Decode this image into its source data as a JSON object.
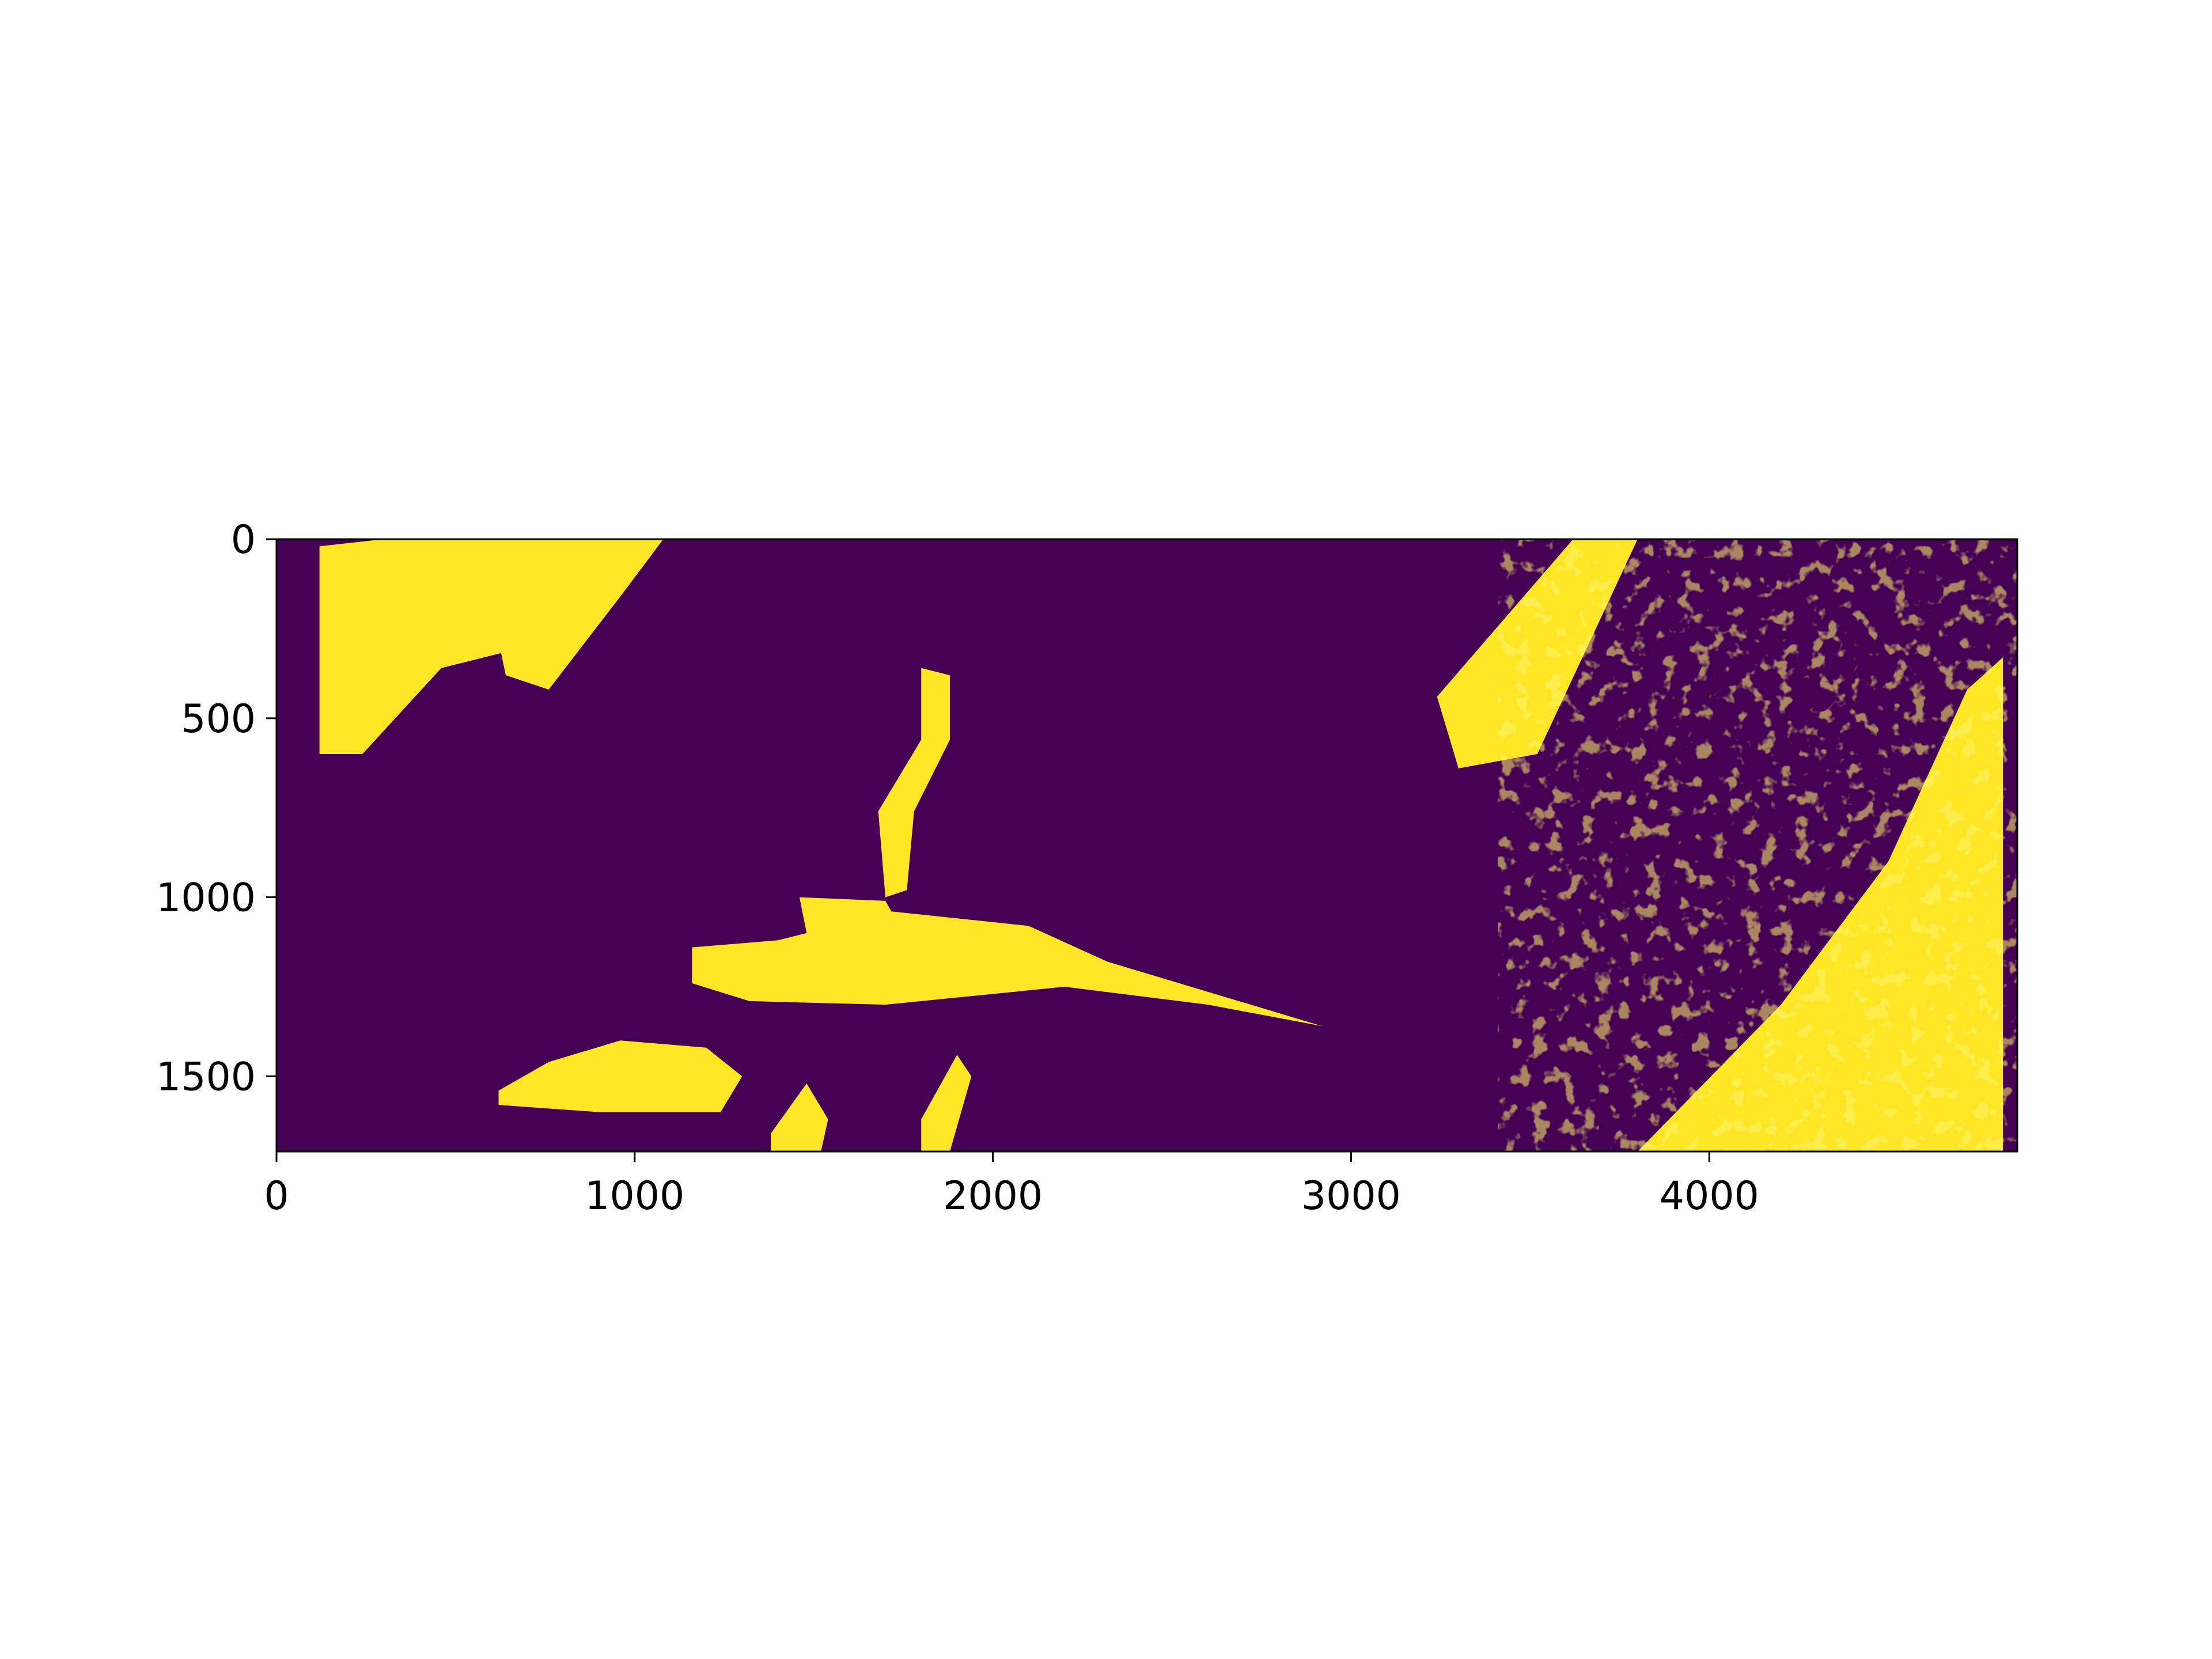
{
  "chart_data": {
    "type": "heatmap",
    "colormap": "viridis",
    "values_present": [
      0,
      1
    ],
    "colors": {
      "low": "#440154",
      "high": "#fde725",
      "frame": "#000000"
    },
    "x_axis": {
      "range": [
        0,
        4860
      ],
      "ticks": [
        0,
        1000,
        2000,
        3000,
        4000
      ],
      "tick_labels": [
        "0",
        "1000",
        "2000",
        "3000",
        "4000"
      ]
    },
    "y_axis": {
      "range": [
        0,
        1710
      ],
      "inverted": true,
      "ticks": [
        0,
        500,
        1000,
        1500
      ],
      "tick_labels": [
        "0",
        "500",
        "1000",
        "1500"
      ]
    },
    "regions_value_1": [
      {
        "name": "upper-left-bright-area",
        "points": [
          [
            120,
            20
          ],
          [
            300,
            0
          ],
          [
            560,
            0
          ],
          [
            700,
            300
          ],
          [
            460,
            360
          ],
          [
            240,
            600
          ],
          [
            120,
            600
          ]
        ]
      },
      {
        "name": "upper-left-fragments",
        "points": [
          [
            560,
            0
          ],
          [
            1080,
            0
          ],
          [
            960,
            160
          ],
          [
            760,
            420
          ],
          [
            640,
            380
          ]
        ]
      },
      {
        "name": "central-river-channel",
        "points": [
          [
            1800,
            360
          ],
          [
            1880,
            380
          ],
          [
            1880,
            560
          ],
          [
            1780,
            760
          ],
          [
            1760,
            980
          ],
          [
            1700,
            1000
          ],
          [
            1680,
            760
          ],
          [
            1800,
            560
          ]
        ]
      },
      {
        "name": "central-large-water-body",
        "points": [
          [
            1160,
            1140
          ],
          [
            1400,
            1120
          ],
          [
            1720,
            1040
          ],
          [
            2100,
            1080
          ],
          [
            2320,
            1180
          ],
          [
            2920,
            1360
          ],
          [
            2600,
            1300
          ],
          [
            2200,
            1250
          ],
          [
            1700,
            1300
          ],
          [
            1320,
            1290
          ],
          [
            1160,
            1240
          ]
        ]
      },
      {
        "name": "left-channel-arm",
        "points": [
          [
            1460,
            1000
          ],
          [
            1700,
            1010
          ],
          [
            1740,
            1080
          ],
          [
            1480,
            1100
          ]
        ]
      },
      {
        "name": "lower-left-water-body",
        "points": [
          [
            620,
            1540
          ],
          [
            760,
            1460
          ],
          [
            960,
            1400
          ],
          [
            1200,
            1420
          ],
          [
            1300,
            1500
          ],
          [
            1240,
            1600
          ],
          [
            900,
            1600
          ],
          [
            620,
            1580
          ]
        ]
      },
      {
        "name": "bottom-channel-lobes",
        "points": [
          [
            1380,
            1660
          ],
          [
            1480,
            1520
          ],
          [
            1540,
            1620
          ],
          [
            1520,
            1710
          ],
          [
            1380,
            1710
          ]
        ]
      },
      {
        "name": "bottom-channel-right",
        "points": [
          [
            1800,
            1620
          ],
          [
            1900,
            1440
          ],
          [
            1940,
            1500
          ],
          [
            1880,
            1710
          ],
          [
            1800,
            1710
          ]
        ]
      },
      {
        "name": "mid-north-scattered-streaks",
        "points": [
          [
            3240,
            440
          ],
          [
            3620,
            0
          ],
          [
            3800,
            0
          ],
          [
            3520,
            600
          ],
          [
            3300,
            640
          ]
        ]
      },
      {
        "name": "lower-right-textured-area",
        "points": [
          [
            3800,
            1710
          ],
          [
            4200,
            1300
          ],
          [
            4500,
            900
          ],
          [
            4720,
            420
          ],
          [
            4820,
            330
          ],
          [
            4820,
            1710
          ]
        ]
      }
    ]
  }
}
